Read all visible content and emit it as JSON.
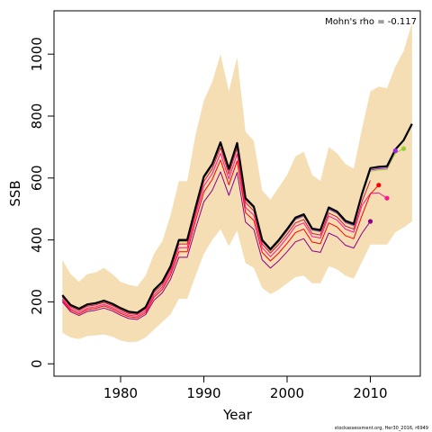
{
  "chart_data": {
    "type": "line",
    "xlabel": "Year",
    "ylabel": "SSB",
    "xlim": [
      1972,
      2016
    ],
    "ylim": [
      -40,
      1140
    ],
    "xticks": [
      1980,
      1990,
      2000,
      2010
    ],
    "yticks": [
      0,
      200,
      400,
      600,
      800,
      1000
    ],
    "annotation": "Mohn's rho = -0.117",
    "footer": "stockassessment.org, Her30_2016, r6949",
    "colors": {
      "band": "#f5deb3",
      "latest": "#000000",
      "peel_a": "#9acd32",
      "peel_b": "#a020f0",
      "peel_c": "#ff1493",
      "peel_d": "#ff0000",
      "peel_e": "#8b008b",
      "peel_f": "#dc143c"
    },
    "band": {
      "years": [
        1973,
        1974,
        1975,
        1976,
        1977,
        1978,
        1979,
        1980,
        1981,
        1982,
        1983,
        1984,
        1985,
        1986,
        1987,
        1988,
        1989,
        1990,
        1991,
        1992,
        1993,
        1994,
        1995,
        1996,
        1997,
        1998,
        1999,
        2000,
        2001,
        2002,
        2003,
        2004,
        2005,
        2006,
        2007,
        2008,
        2009,
        2010,
        2011,
        2012,
        2013,
        2014,
        2015
      ],
      "upper": [
        335,
        290,
        265,
        290,
        295,
        310,
        290,
        265,
        255,
        250,
        285,
        355,
        395,
        480,
        590,
        590,
        740,
        850,
        910,
        1000,
        880,
        990,
        750,
        720,
        560,
        530,
        570,
        610,
        670,
        685,
        610,
        590,
        700,
        680,
        645,
        630,
        760,
        880,
        895,
        890,
        960,
        1010,
        1100
      ],
      "lower": [
        100,
        85,
        80,
        90,
        92,
        95,
        88,
        75,
        70,
        72,
        85,
        110,
        135,
        160,
        210,
        210,
        285,
        355,
        400,
        435,
        380,
        430,
        325,
        310,
        245,
        225,
        240,
        260,
        280,
        285,
        260,
        260,
        315,
        305,
        285,
        275,
        330,
        385,
        385,
        385,
        425,
        440,
        460
      ]
    },
    "series": [
      {
        "color_key": "latest",
        "width": 2.2,
        "years": [
          1973,
          1974,
          1975,
          1976,
          1977,
          1978,
          1979,
          1980,
          1981,
          1982,
          1983,
          1984,
          1985,
          1986,
          1987,
          1988,
          1989,
          1990,
          1991,
          1992,
          1993,
          1994,
          1995,
          1996,
          1997,
          1998,
          1999,
          2000,
          2001,
          2002,
          2003,
          2004,
          2005,
          2006,
          2007,
          2008,
          2009,
          2010,
          2011,
          2012,
          2013,
          2014,
          2015
        ],
        "values": [
          222,
          190,
          178,
          192,
          196,
          204,
          194,
          180,
          168,
          165,
          183,
          238,
          265,
          315,
          400,
          400,
          505,
          605,
          645,
          715,
          630,
          713,
          535,
          508,
          400,
          370,
          400,
          435,
          472,
          483,
          437,
          432,
          505,
          492,
          462,
          452,
          550,
          632,
          636,
          638,
          692,
          722,
          775
        ]
      },
      {
        "color_key": "peel_a",
        "width": 1,
        "years": [
          1973,
          1974,
          1975,
          1976,
          1977,
          1978,
          1979,
          1980,
          1981,
          1982,
          1983,
          1984,
          1985,
          1986,
          1987,
          1988,
          1989,
          1990,
          1991,
          1992,
          1993,
          1994,
          1995,
          1996,
          1997,
          1998,
          1999,
          2000,
          2001,
          2002,
          2003,
          2004,
          2005,
          2006,
          2007,
          2008,
          2009,
          2010,
          2011,
          2012,
          2013,
          2014
        ],
        "values": [
          219,
          187,
          175,
          189,
          193,
          201,
          191,
          177,
          165,
          162,
          180,
          234,
          261,
          310,
          394,
          394,
          498,
          598,
          638,
          708,
          623,
          706,
          529,
          502,
          394,
          364,
          393,
          428,
          465,
          476,
          431,
          426,
          498,
          485,
          455,
          445,
          542,
          622,
          626,
          628,
          680,
          695
        ]
      },
      {
        "color_key": "peel_b",
        "width": 1,
        "years": [
          1973,
          1974,
          1975,
          1976,
          1977,
          1978,
          1979,
          1980,
          1981,
          1982,
          1983,
          1984,
          1985,
          1986,
          1987,
          1988,
          1989,
          1990,
          1991,
          1992,
          1993,
          1994,
          1995,
          1996,
          1997,
          1998,
          1999,
          2000,
          2001,
          2002,
          2003,
          2004,
          2005,
          2006,
          2007,
          2008,
          2009,
          2010,
          2011,
          2012,
          2013
        ],
        "values": [
          220,
          188,
          176,
          190,
          194,
          202,
          192,
          178,
          166,
          163,
          181,
          236,
          263,
          312,
          397,
          397,
          501,
          601,
          641,
          711,
          626,
          709,
          531,
          504,
          396,
          366,
          396,
          430,
          467,
          478,
          433,
          428,
          500,
          487,
          457,
          447,
          545,
          626,
          630,
          632,
          688
        ]
      },
      {
        "color_key": "peel_c",
        "width": 1,
        "years": [
          1973,
          1974,
          1975,
          1976,
          1977,
          1978,
          1979,
          1980,
          1981,
          1982,
          1983,
          1984,
          1985,
          1986,
          1987,
          1988,
          1989,
          1990,
          1991,
          1992,
          1993,
          1994,
          1995,
          1996,
          1997,
          1998,
          1999,
          2000,
          2001,
          2002,
          2003,
          2004,
          2005,
          2006,
          2007,
          2008,
          2009,
          2010,
          2011,
          2012
        ],
        "values": [
          210,
          178,
          166,
          180,
          184,
          192,
          182,
          168,
          157,
          154,
          171,
          222,
          248,
          296,
          375,
          375,
          478,
          574,
          614,
          680,
          597,
          678,
          505,
          480,
          375,
          346,
          374,
          407,
          444,
          455,
          411,
          406,
          477,
          464,
          435,
          425,
          512,
          550,
          552,
          535
        ]
      },
      {
        "color_key": "peel_d",
        "width": 1,
        "years": [
          1973,
          1974,
          1975,
          1976,
          1977,
          1978,
          1979,
          1980,
          1981,
          1982,
          1983,
          1984,
          1985,
          1986,
          1987,
          1988,
          1989,
          1990,
          1991,
          1992,
          1993,
          1994,
          1995,
          1996,
          1997,
          1998,
          1999,
          2000,
          2001,
          2002,
          2003,
          2004,
          2005,
          2006,
          2007,
          2008,
          2009,
          2010,
          2011
        ],
        "values": [
          205,
          173,
          161,
          175,
          179,
          187,
          177,
          163,
          152,
          149,
          165,
          215,
          240,
          287,
          362,
          362,
          462,
          555,
          595,
          658,
          578,
          655,
          488,
          463,
          360,
          332,
          358,
          389,
          424,
          435,
          393,
          388,
          455,
          442,
          414,
          404,
          480,
          548,
          577
        ]
      },
      {
        "color_key": "peel_e",
        "width": 1,
        "years": [
          1973,
          1974,
          1975,
          1976,
          1977,
          1978,
          1979,
          1980,
          1981,
          1982,
          1983,
          1984,
          1985,
          1986,
          1987,
          1988,
          1989,
          1990,
          1991,
          1992,
          1993,
          1994,
          1995,
          1996,
          1997,
          1998,
          1999,
          2000,
          2001,
          2002,
          2003,
          2004,
          2005,
          2006,
          2007,
          2008,
          2009,
          2010
        ],
        "values": [
          200,
          168,
          156,
          169,
          173,
          180,
          171,
          157,
          146,
          143,
          159,
          205,
          229,
          273,
          344,
          344,
          437,
          523,
          560,
          620,
          544,
          618,
          458,
          434,
          336,
          309,
          333,
          362,
          394,
          404,
          365,
          360,
          422,
          410,
          383,
          374,
          422,
          460
        ]
      },
      {
        "color_key": "peel_f",
        "width": 1,
        "years": [
          1973,
          1974,
          1975,
          1976,
          1977,
          1978,
          1979,
          1980,
          1981,
          1982,
          1983,
          1984,
          1985,
          1986,
          1987,
          1988,
          1989,
          1990,
          1991,
          1992,
          1993,
          1994,
          1995,
          1996,
          1997,
          1998,
          1999,
          2000,
          2001,
          2002,
          2003,
          2004,
          2005,
          2006,
          2007,
          2008,
          2009,
          2010
        ],
        "values": [
          216,
          184,
          172,
          186,
          190,
          198,
          188,
          174,
          162,
          159,
          177,
          230,
          256,
          305,
          387,
          387,
          490,
          589,
          629,
          698,
          613,
          696,
          521,
          494,
          387,
          358,
          386,
          419,
          455,
          466,
          421,
          416,
          487,
          474,
          445,
          435,
          525,
          592
        ]
      }
    ],
    "endpoints": [
      {
        "color_key": "peel_a",
        "year": 2014,
        "value": 695
      },
      {
        "color_key": "peel_b",
        "year": 2013,
        "value": 688
      },
      {
        "color_key": "peel_c",
        "year": 2012,
        "value": 535
      },
      {
        "color_key": "peel_d",
        "year": 2011,
        "value": 577
      },
      {
        "color_key": "peel_e",
        "year": 2010,
        "value": 460
      }
    ]
  }
}
